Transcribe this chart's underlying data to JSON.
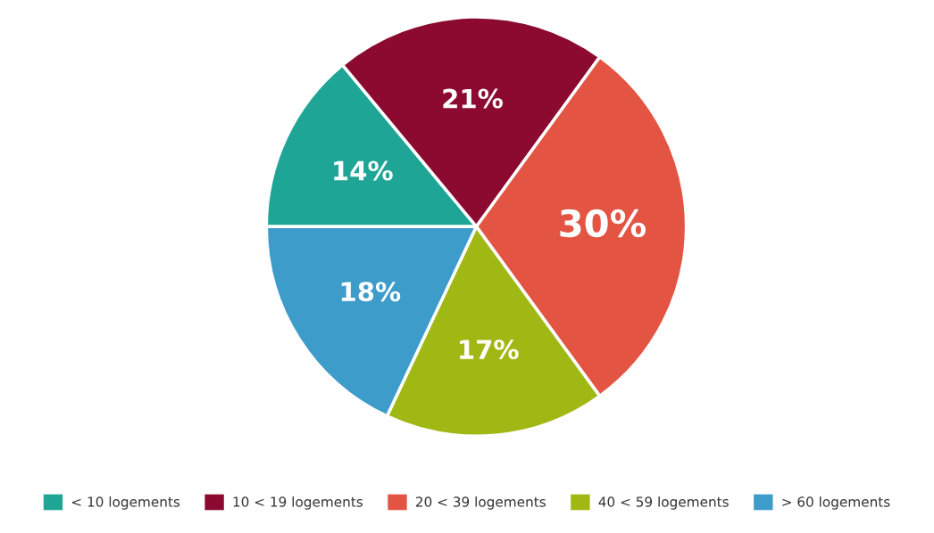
{
  "chart_data": {
    "type": "pie",
    "categories": [
      "< 10 logements",
      "10 < 19 logements",
      "20 < 39 logements",
      "40 < 59 logements",
      "> 60 logements"
    ],
    "values": [
      14,
      21,
      30,
      17,
      18
    ],
    "colors": [
      "#1fa595",
      "#8c0a30",
      "#e35443",
      "#a0b814",
      "#3d9cca"
    ],
    "value_labels": [
      "14%",
      "21%",
      "30%",
      "17%",
      "18%"
    ],
    "legend": "bottom"
  }
}
